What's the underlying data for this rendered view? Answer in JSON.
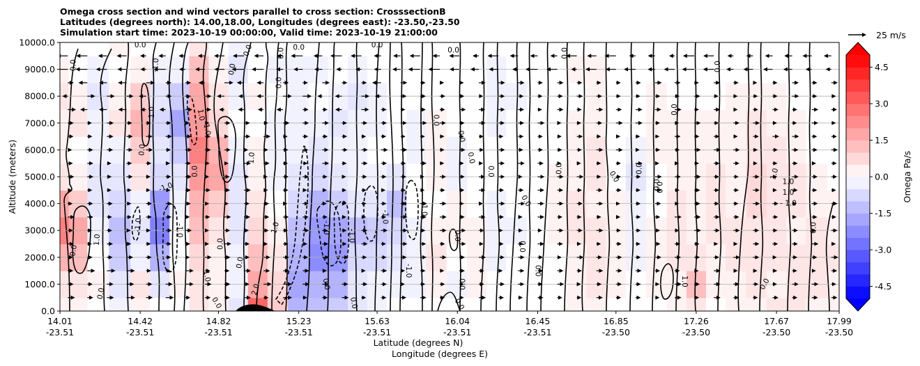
{
  "titles": [
    "Omega cross section and wind vectors parallel to cross section: CrosssectionB",
    "Latitudes (degrees north): 14.00,18.00, Longitudes (degrees east): -23.50,-23.50",
    "Simulation start time: 2023-10-19 00:00:00, Valid time: 2023-10-19 21:00:00"
  ],
  "chart_data": {
    "type": "heatmap",
    "subtype": "cross-section filled contour with wind vectors",
    "ylabel": "Altitude (meters)",
    "xlabel_lines": [
      "Latitude (degrees N)",
      "Longitude (degrees E)"
    ],
    "ylim": [
      0,
      10000
    ],
    "yticks": [
      "0.0",
      "1000.0",
      "2000.0",
      "3000.0",
      "4000.0",
      "5000.0",
      "6000.0",
      "7000.0",
      "8000.0",
      "9000.0",
      "10000.0"
    ],
    "grid": "horizontal",
    "x_ticks": [
      {
        "lat": "14.01",
        "lon": "-23.51"
      },
      {
        "lat": "14.42",
        "lon": "-23.51"
      },
      {
        "lat": "14.82",
        "lon": "-23.51"
      },
      {
        "lat": "15.23",
        "lon": "-23.51"
      },
      {
        "lat": "15.63",
        "lon": "-23.51"
      },
      {
        "lat": "16.04",
        "lon": "-23.51"
      },
      {
        "lat": "16.45",
        "lon": "-23.51"
      },
      {
        "lat": "16.85",
        "lon": "-23.50"
      },
      {
        "lat": "17.26",
        "lon": "-23.50"
      },
      {
        "lat": "17.67",
        "lon": "-23.50"
      },
      {
        "lat": "17.99",
        "lon": "-23.50"
      }
    ],
    "colorbar": {
      "label": "Omega Pa/s",
      "range": [
        -5.0,
        5.0
      ],
      "ticks": [
        "-4.5",
        "-3.0",
        "-1.5",
        "0.0",
        "1.5",
        "3.0",
        "4.5"
      ],
      "extend": "both",
      "cmap": "bwr",
      "low_color": "#0000ff",
      "high_color": "#ff0000"
    },
    "quiver_key": {
      "label": "25 m/s"
    },
    "columns": [
      {
        "lat": 14.01,
        "levels": [
          0.2,
          0.4,
          1.5,
          2.5,
          1.8,
          0.6,
          0.2,
          0.3,
          0.4,
          0.2,
          0.1
        ]
      },
      {
        "lat": 14.1,
        "levels": [
          0.3,
          0.5,
          1.2,
          1.8,
          1.0,
          0.3,
          0.1,
          0.4,
          0.3,
          0.1,
          0.0
        ]
      },
      {
        "lat": 14.2,
        "levels": [
          0.1,
          0.2,
          0.1,
          -0.2,
          -0.5,
          -0.4,
          -0.3,
          -0.3,
          -0.4,
          -0.3,
          -0.1
        ]
      },
      {
        "lat": 14.32,
        "levels": [
          -0.2,
          -0.5,
          -1.0,
          -1.2,
          -0.8,
          -0.4,
          -0.2,
          0.6,
          0.3,
          0.1,
          0.2
        ]
      },
      {
        "lat": 14.42,
        "levels": [
          0.2,
          0.4,
          -0.3,
          -0.5,
          -0.3,
          0.5,
          1.0,
          1.6,
          1.0,
          0.3,
          0.1
        ]
      },
      {
        "lat": 14.52,
        "levels": [
          0.0,
          -0.4,
          -1.5,
          -2.6,
          -2.0,
          -0.8,
          -0.6,
          -0.8,
          -0.5,
          -0.2,
          0.0
        ]
      },
      {
        "lat": 14.62,
        "levels": [
          0.1,
          0.2,
          0.1,
          -0.1,
          -0.2,
          -0.5,
          -1.0,
          -1.8,
          -1.0,
          -0.3,
          0.1
        ]
      },
      {
        "lat": 14.72,
        "levels": [
          0.4,
          0.6,
          0.8,
          1.2,
          1.6,
          2.0,
          2.5,
          2.0,
          1.8,
          1.2,
          0.5
        ]
      },
      {
        "lat": 14.82,
        "levels": [
          0.2,
          0.3,
          0.2,
          0.4,
          1.0,
          1.8,
          1.5,
          0.8,
          0.4,
          0.2,
          0.1
        ]
      },
      {
        "lat": 14.92,
        "levels": [
          -0.5,
          -0.3,
          -0.2,
          -0.4,
          -0.6,
          -0.4,
          -0.2,
          -0.1,
          -0.3,
          -0.4,
          -0.2
        ]
      },
      {
        "lat": 15.02,
        "levels": [
          3.0,
          1.8,
          1.2,
          0.8,
          0.6,
          0.3,
          0.2,
          0.1,
          0.2,
          0.1,
          0.0
        ]
      },
      {
        "lat": 15.12,
        "levels": [
          1.0,
          0.8,
          0.5,
          0.3,
          0.1,
          -0.2,
          -0.3,
          -0.2,
          -0.1,
          -0.2,
          -0.1
        ]
      },
      {
        "lat": 15.23,
        "levels": [
          -1.5,
          -1.8,
          -1.6,
          -1.2,
          -0.8,
          -0.5,
          -0.3,
          -0.2,
          -0.2,
          -0.3,
          -0.1
        ]
      },
      {
        "lat": 15.33,
        "levels": [
          -1.2,
          -1.5,
          -2.2,
          -2.0,
          -1.5,
          -0.8,
          -0.4,
          -0.2,
          -0.1,
          -0.2,
          0.0
        ]
      },
      {
        "lat": 15.43,
        "levels": [
          -1.0,
          -1.5,
          -2.0,
          -1.8,
          -1.0,
          -0.5,
          -0.3,
          -0.4,
          -0.3,
          -0.1,
          0.0
        ]
      },
      {
        "lat": 15.53,
        "levels": [
          -0.4,
          -0.6,
          -0.8,
          -1.2,
          -0.6,
          -0.3,
          -0.2,
          -0.3,
          -0.5,
          -0.3,
          -0.1
        ]
      },
      {
        "lat": 15.63,
        "levels": [
          -0.2,
          -0.3,
          -0.8,
          -1.0,
          -0.4,
          -0.2,
          -0.1,
          -0.2,
          -0.2,
          -0.1,
          0.0
        ]
      },
      {
        "lat": 15.73,
        "levels": [
          -0.1,
          -0.2,
          -0.5,
          -0.8,
          -1.2,
          -0.4,
          -0.1,
          -0.1,
          -0.1,
          0.0,
          0.0
        ]
      },
      {
        "lat": 15.83,
        "levels": [
          -0.1,
          -0.2,
          -0.3,
          -0.2,
          -0.1,
          -0.1,
          -0.2,
          -0.2,
          -0.1,
          -0.1,
          0.0
        ]
      },
      {
        "lat": 15.93,
        "levels": [
          0.1,
          0.2,
          0.4,
          0.2,
          0.1,
          0.2,
          0.3,
          0.2,
          0.1,
          0.1,
          0.0
        ]
      },
      {
        "lat": 16.04,
        "levels": [
          -0.1,
          -0.2,
          -0.1,
          0.2,
          0.3,
          -0.2,
          -0.2,
          -0.1,
          -0.1,
          -0.1,
          0.0
        ]
      },
      {
        "lat": 16.14,
        "levels": [
          0.1,
          0.2,
          0.3,
          0.2,
          0.1,
          0.1,
          0.1,
          0.1,
          0.1,
          0.0,
          0.0
        ]
      },
      {
        "lat": 16.24,
        "levels": [
          -0.1,
          -0.1,
          -0.2,
          -0.3,
          -0.2,
          -0.1,
          -0.1,
          -0.2,
          -0.3,
          -0.2,
          -0.1
        ]
      },
      {
        "lat": 16.34,
        "levels": [
          -0.1,
          -0.1,
          -0.1,
          -0.2,
          -0.1,
          -0.1,
          -0.1,
          -0.1,
          -0.2,
          -0.1,
          0.0
        ]
      },
      {
        "lat": 16.45,
        "levels": [
          -0.1,
          -0.1,
          -0.1,
          -0.1,
          -0.1,
          -0.1,
          -0.1,
          -0.1,
          -0.1,
          -0.1,
          0.0
        ]
      },
      {
        "lat": 16.55,
        "levels": [
          0.1,
          0.1,
          0.1,
          0.2,
          0.3,
          0.2,
          0.1,
          0.1,
          0.1,
          0.1,
          0.0
        ]
      },
      {
        "lat": 16.65,
        "levels": [
          0.2,
          0.3,
          0.3,
          0.4,
          0.4,
          0.3,
          0.3,
          0.2,
          0.1,
          0.2,
          0.1
        ]
      },
      {
        "lat": 16.75,
        "levels": [
          0.3,
          0.4,
          0.5,
          0.4,
          0.3,
          0.5,
          0.4,
          0.3,
          0.2,
          0.2,
          0.1
        ]
      },
      {
        "lat": 16.85,
        "levels": [
          0.1,
          0.2,
          0.2,
          0.3,
          0.2,
          0.1,
          0.1,
          0.1,
          0.1,
          0.1,
          0.0
        ]
      },
      {
        "lat": 16.95,
        "levels": [
          -0.1,
          -0.1,
          -0.2,
          -0.2,
          -0.3,
          -0.4,
          -0.2,
          -0.1,
          -0.1,
          -0.1,
          0.0
        ]
      },
      {
        "lat": 17.06,
        "levels": [
          0.1,
          0.2,
          0.3,
          0.2,
          0.1,
          0.1,
          0.2,
          0.3,
          0.2,
          0.1,
          0.1
        ]
      },
      {
        "lat": 17.16,
        "levels": [
          0.2,
          0.3,
          0.5,
          0.6,
          0.5,
          0.3,
          0.2,
          0.2,
          0.1,
          0.1,
          0.0
        ]
      },
      {
        "lat": 17.26,
        "levels": [
          0.4,
          1.2,
          0.5,
          0.3,
          0.2,
          0.3,
          0.2,
          0.2,
          0.1,
          0.1,
          0.0
        ]
      },
      {
        "lat": 17.36,
        "levels": [
          0.1,
          0.2,
          0.3,
          0.5,
          0.6,
          0.4,
          0.3,
          0.2,
          0.1,
          0.1,
          0.0
        ]
      },
      {
        "lat": 17.46,
        "levels": [
          0.2,
          0.3,
          0.4,
          0.5,
          0.3,
          0.2,
          0.2,
          0.3,
          0.2,
          0.1,
          0.1
        ]
      },
      {
        "lat": 17.57,
        "levels": [
          0.3,
          0.4,
          0.5,
          0.6,
          0.7,
          0.8,
          0.6,
          0.4,
          0.2,
          0.1,
          0.0
        ]
      },
      {
        "lat": 17.67,
        "levels": [
          0.4,
          0.3,
          0.4,
          0.5,
          0.6,
          0.5,
          0.4,
          0.3,
          0.2,
          0.1,
          0.0
        ]
      },
      {
        "lat": 17.77,
        "levels": [
          0.5,
          0.6,
          0.4,
          0.3,
          0.4,
          0.5,
          0.3,
          0.2,
          0.1,
          0.1,
          0.0
        ]
      },
      {
        "lat": 17.87,
        "levels": [
          0.3,
          0.4,
          0.5,
          0.4,
          0.3,
          0.2,
          0.1,
          0.1,
          0.0,
          0.0,
          0.0
        ]
      },
      {
        "lat": 17.99,
        "levels": [
          0.2,
          0.3,
          0.4,
          0.3,
          0.2,
          0.1,
          0.1,
          0.0,
          0.0,
          0.0,
          0.0
        ]
      }
    ],
    "contour_labels": [
      {
        "text": "0.0",
        "lat": 14.08,
        "alt": 9150,
        "rot": -90
      },
      {
        "text": "0.0",
        "lat": 14.08,
        "alt": 2250,
        "rot": -80
      },
      {
        "text": "0.0",
        "lat": 14.22,
        "alt": 650,
        "rot": -80
      },
      {
        "text": "1.0",
        "lat": 14.2,
        "alt": 2650,
        "rot": -85
      },
      {
        "text": "0.0",
        "lat": 14.43,
        "alt": 6000,
        "rot": -85
      },
      {
        "text": "0.0",
        "lat": 14.42,
        "alt": 9900,
        "rot": 0
      },
      {
        "text": "-1.0",
        "lat": 14.5,
        "alt": 9150,
        "rot": -85
      },
      {
        "text": "1.0",
        "lat": 14.48,
        "alt": 7400,
        "rot": -90
      },
      {
        "text": "-1.0",
        "lat": 14.41,
        "alt": 3200,
        "rot": -85
      },
      {
        "text": "-1.0",
        "lat": 14.55,
        "alt": 4600,
        "rot": -20
      },
      {
        "text": "-1.0",
        "lat": 14.62,
        "alt": 3000,
        "rot": 90
      },
      {
        "text": "1.0",
        "lat": 14.73,
        "alt": 7300,
        "rot": 80
      },
      {
        "text": "-1.0",
        "lat": 14.76,
        "alt": 6800,
        "rot": 80
      },
      {
        "text": "0.0",
        "lat": 14.7,
        "alt": 5200,
        "rot": -90
      },
      {
        "text": "0.0",
        "lat": 14.89,
        "alt": 9000,
        "rot": -80
      },
      {
        "text": "0.0",
        "lat": 14.97,
        "alt": 9700,
        "rot": -70
      },
      {
        "text": "1.0",
        "lat": 14.99,
        "alt": 5700,
        "rot": -85
      },
      {
        "text": "0.0",
        "lat": 14.83,
        "alt": 2500,
        "rot": -90
      },
      {
        "text": "1.0",
        "lat": 14.76,
        "alt": 1300,
        "rot": 80
      },
      {
        "text": "0.0",
        "lat": 14.81,
        "alt": 300,
        "rot": 60
      },
      {
        "text": "0.0",
        "lat": 14.93,
        "alt": 1800,
        "rot": -80
      },
      {
        "text": "2.0",
        "lat": 15.01,
        "alt": 800,
        "rot": -75
      },
      {
        "text": "1.0",
        "lat": 15.11,
        "alt": 3100,
        "rot": -75
      },
      {
        "text": "0.0",
        "lat": 15.14,
        "alt": 9600,
        "rot": -90
      },
      {
        "text": "0.0",
        "lat": 15.13,
        "alt": 8500,
        "rot": -90
      },
      {
        "text": "0.0",
        "lat": 15.23,
        "alt": 9800,
        "rot": 0
      },
      {
        "text": "-1.0",
        "lat": 15.37,
        "alt": 3100,
        "rot": 90
      },
      {
        "text": "-1.0",
        "lat": 15.5,
        "alt": 2800,
        "rot": 90
      },
      {
        "text": "0.0",
        "lat": 15.37,
        "alt": 1000,
        "rot": 80
      },
      {
        "text": "0.0",
        "lat": 15.51,
        "alt": 300,
        "rot": 80
      },
      {
        "text": "-1.0",
        "lat": 15.67,
        "alt": 3500,
        "rot": 90
      },
      {
        "text": "0.0",
        "lat": 15.63,
        "alt": 9900,
        "rot": 0
      },
      {
        "text": "-1.0",
        "lat": 15.87,
        "alt": 3800,
        "rot": 90
      },
      {
        "text": "-1.0",
        "lat": 15.79,
        "alt": 1500,
        "rot": 90
      },
      {
        "text": "0.0",
        "lat": 15.93,
        "alt": 7100,
        "rot": 90
      },
      {
        "text": "0.0",
        "lat": 16.02,
        "alt": 9700,
        "rot": 0
      },
      {
        "text": "0.0",
        "lat": 16.06,
        "alt": 6500,
        "rot": 80
      },
      {
        "text": "0.0",
        "lat": 16.11,
        "alt": 5700,
        "rot": 80
      },
      {
        "text": "0.0",
        "lat": 16.04,
        "alt": 2800,
        "rot": 90
      },
      {
        "text": "0.0",
        "lat": 16.07,
        "alt": 1000,
        "rot": -90
      },
      {
        "text": "0.0",
        "lat": 16.05,
        "alt": 250,
        "rot": 60
      },
      {
        "text": "0.0",
        "lat": 16.21,
        "alt": 5200,
        "rot": 90
      },
      {
        "text": "0.0",
        "lat": 16.37,
        "alt": 2400,
        "rot": 90
      },
      {
        "text": "0.0",
        "lat": 16.39,
        "alt": 4100,
        "rot": 60
      },
      {
        "text": "0.0",
        "lat": 16.45,
        "alt": 1500,
        "rot": 90
      },
      {
        "text": "0.0",
        "lat": 16.56,
        "alt": 5300,
        "rot": -90
      },
      {
        "text": "0.0",
        "lat": 16.59,
        "alt": 9600,
        "rot": -90
      },
      {
        "text": "0.0",
        "lat": 16.84,
        "alt": 5000,
        "rot": 60
      },
      {
        "text": "0.0",
        "lat": 16.97,
        "alt": 5300,
        "rot": -90
      },
      {
        "text": "0.0",
        "lat": 17.15,
        "alt": 7500,
        "rot": -90
      },
      {
        "text": "0.0",
        "lat": 17.06,
        "alt": 4700,
        "rot": -90
      },
      {
        "text": "0.0",
        "lat": 17.07,
        "alt": 4600,
        "rot": 90
      },
      {
        "text": "1.0",
        "lat": 17.2,
        "alt": 1100,
        "rot": 90
      },
      {
        "text": "0.0",
        "lat": 17.37,
        "alt": 9100,
        "rot": -90
      },
      {
        "text": "1.0",
        "lat": 17.66,
        "alt": 5100,
        "rot": -75
      },
      {
        "text": "0.0",
        "lat": 17.61,
        "alt": 1000,
        "rot": -60
      },
      {
        "text": "1.0",
        "lat": 17.73,
        "alt": 4800,
        "rot": 0
      },
      {
        "text": "1.0",
        "lat": 17.73,
        "alt": 4400,
        "rot": 0
      },
      {
        "text": "- 1.0",
        "lat": 17.73,
        "alt": 4000,
        "rot": 0
      },
      {
        "text": "0.0",
        "lat": 17.86,
        "alt": 3100,
        "rot": -90
      }
    ]
  }
}
